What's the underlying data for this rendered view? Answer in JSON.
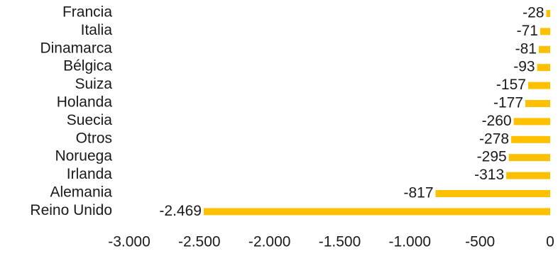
{
  "chart_data": {
    "type": "bar",
    "orientation": "horizontal",
    "title": "",
    "xlabel": "",
    "ylabel": "",
    "categories": [
      "Francia",
      "Italia",
      "Dinamarca",
      "Bélgica",
      "Suiza",
      "Holanda",
      "Suecia",
      "Otros",
      "Noruega",
      "Irlanda",
      "Alemania",
      "Reino Unido"
    ],
    "values": [
      -28,
      -71,
      -81,
      -93,
      -157,
      -177,
      -260,
      -278,
      -295,
      -313,
      -817,
      -2469
    ],
    "value_labels": [
      "-28",
      "-71",
      "-81",
      "-93",
      "-157",
      "-177",
      "-260",
      "-278",
      "-295",
      "-313",
      "-817",
      "-2.469"
    ],
    "xlim": [
      -3000,
      0
    ],
    "xticks": [
      -3000,
      -2500,
      -2000,
      -1500,
      -1000,
      -500,
      0
    ],
    "xtick_labels": [
      "-3.000",
      "-2.500",
      "-2.000",
      "-1.500",
      "-1.000",
      "-500",
      "0"
    ],
    "bar_color": "#FFC000",
    "grid": false,
    "legend": "none"
  }
}
